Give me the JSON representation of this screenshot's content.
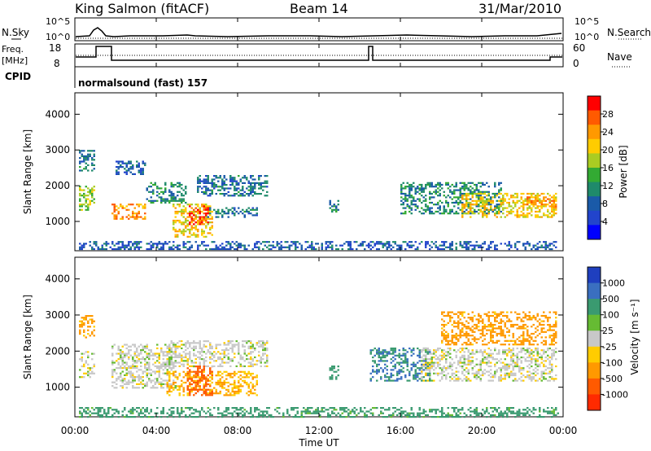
{
  "header": {
    "radar": "King Salmon (fitACF)",
    "beam": "Beam 14",
    "date": "31/Mar/2010"
  },
  "top_panels": {
    "nsky_label": "N.Sky",
    "nsearch_label": "N.Search",
    "nsky_ticks": [
      "10^5",
      "10^0"
    ],
    "nsearch_ticks": [
      "10^5",
      "10^0"
    ],
    "freq_label_1": "Freq.",
    "freq_label_2": "[MHz]",
    "freq_ticks": [
      "18",
      "8"
    ],
    "nave_label": "Nave",
    "nave_ticks": [
      "60",
      "0"
    ],
    "cpid_label": "CPID",
    "cpid_text": "normalsound (fast) 157"
  },
  "power_colorbar": {
    "label": "Power [dB]",
    "ticks": [
      "28",
      "24",
      "20",
      "16",
      "12",
      "8",
      "4"
    ],
    "colors": [
      "#ff0000",
      "#ff5a00",
      "#ff9900",
      "#ffcc00",
      "#aacc22",
      "#33aa33",
      "#1f8a6b",
      "#1a5aa8",
      "#2244cc",
      "#0000ff"
    ]
  },
  "velocity_colorbar": {
    "label": "Velocity [m s⁻¹]",
    "ticks": [
      "1000",
      "500",
      "100",
      "25",
      "-25",
      "-100",
      "-500",
      "-1000"
    ],
    "colors": [
      "#1f3fbf",
      "#3a6fc0",
      "#3a9a70",
      "#66bb33",
      "#c8c8c8",
      "#ffcc00",
      "#ff9900",
      "#ff5a00",
      "#ff2a00"
    ]
  },
  "chart_data": {
    "type": "heatmap",
    "xlabel": "Time UT",
    "ylabel": "Slant Range [km]",
    "x_ticks": [
      "00:00",
      "04:00",
      "08:00",
      "12:00",
      "16:00",
      "20:00",
      "00:00"
    ],
    "x_range_hours": [
      0,
      24
    ],
    "y_ticks": [
      1000,
      2000,
      3000,
      4000
    ],
    "y_range_km": [
      180,
      4600
    ],
    "panels": [
      {
        "quantity": "Power [dB]",
        "regions": [
          {
            "t0": 0.2,
            "t1": 1.0,
            "r0": 1300,
            "r1": 2000,
            "value": 16
          },
          {
            "t0": 0.2,
            "t1": 1.0,
            "r0": 2400,
            "r1": 3000,
            "value": 8
          },
          {
            "t0": 1.8,
            "t1": 3.5,
            "r0": 1050,
            "r1": 1500,
            "value": 24
          },
          {
            "t0": 2.0,
            "t1": 3.5,
            "r0": 2300,
            "r1": 2700,
            "value": 6
          },
          {
            "t0": 3.5,
            "t1": 5.5,
            "r0": 1500,
            "r1": 2100,
            "value": 10
          },
          {
            "t0": 4.8,
            "t1": 6.8,
            "r0": 550,
            "r1": 1500,
            "value": 20
          },
          {
            "t0": 5.6,
            "t1": 6.5,
            "r0": 900,
            "r1": 1450,
            "value": 28
          },
          {
            "t0": 6.5,
            "t1": 9.0,
            "r0": 1100,
            "r1": 1400,
            "value": 8
          },
          {
            "t0": 6.0,
            "t1": 9.5,
            "r0": 1700,
            "r1": 2300,
            "value": 8
          },
          {
            "t0": 12.5,
            "t1": 13.0,
            "r0": 1250,
            "r1": 1600,
            "value": 10
          },
          {
            "t0": 16.0,
            "t1": 21.0,
            "r0": 1200,
            "r1": 2100,
            "value": 10
          },
          {
            "t0": 19.0,
            "t1": 23.7,
            "r0": 1100,
            "r1": 1800,
            "value": 20
          },
          {
            "t0": 22.0,
            "t1": 23.7,
            "r0": 1400,
            "r1": 1700,
            "value": 24
          },
          {
            "t0": 0.2,
            "t1": 23.8,
            "r0": 200,
            "r1": 450,
            "value": 6
          }
        ]
      },
      {
        "quantity": "Velocity [m s-1]",
        "regions": [
          {
            "t0": 0.2,
            "t1": 1.0,
            "r0": 1300,
            "r1": 2000,
            "value": 0
          },
          {
            "t0": 0.2,
            "t1": 1.0,
            "r0": 2400,
            "r1": 3000,
            "value": -200
          },
          {
            "t0": 1.8,
            "t1": 5.0,
            "r0": 1000,
            "r1": 2200,
            "value": 0
          },
          {
            "t0": 4.5,
            "t1": 9.0,
            "r0": 800,
            "r1": 1450,
            "value": -150
          },
          {
            "t0": 5.5,
            "t1": 6.8,
            "r0": 800,
            "r1": 1600,
            "value": -500
          },
          {
            "t0": 4.5,
            "t1": 9.5,
            "r0": 1600,
            "r1": 2300,
            "value": 0
          },
          {
            "t0": 12.5,
            "t1": 13.0,
            "r0": 1250,
            "r1": 1600,
            "value": 300
          },
          {
            "t0": 14.5,
            "t1": 17.5,
            "r0": 1200,
            "r1": 2100,
            "value": 400
          },
          {
            "t0": 17.0,
            "t1": 23.7,
            "r0": 1200,
            "r1": 2100,
            "value": 0
          },
          {
            "t0": 18.0,
            "t1": 23.7,
            "r0": 2200,
            "r1": 3100,
            "value": -200
          },
          {
            "t0": 0.2,
            "t1": 23.8,
            "r0": 200,
            "r1": 450,
            "value": 200
          }
        ]
      }
    ]
  }
}
